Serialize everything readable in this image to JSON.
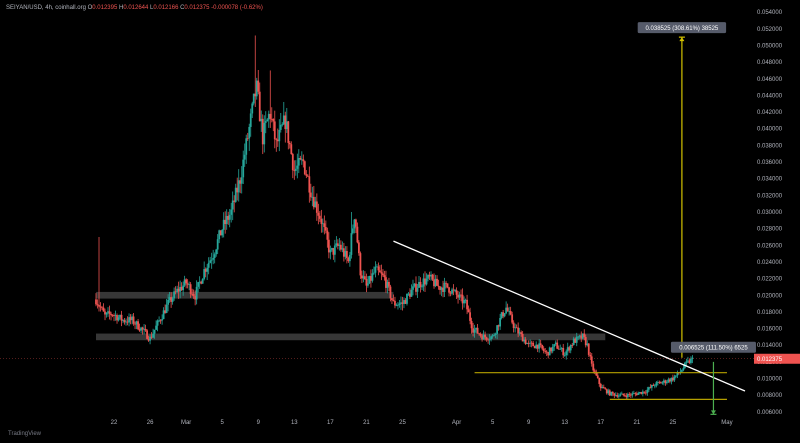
{
  "header": {
    "symbol": "SEIYAN/USD, 4h, coinhall.org",
    "o_label": "O",
    "o_value": "0.012395",
    "h_label": "H",
    "h_value": "0.012644",
    "l_label": "L",
    "l_value": "0.012166",
    "c_label": "C",
    "c_value": "0.012375",
    "change": "-0.000078 (-0.62%)"
  },
  "branding": {
    "label": "TradingView"
  },
  "colors": {
    "up": "#26a69a",
    "down": "#ef5350",
    "trendline": "#ffffff",
    "level_line": "#b5a000",
    "target_arrow": "#d4c200",
    "stop_arrow": "#4caf50",
    "zone": "#4a4a4a"
  },
  "chart_data": {
    "type": "candlestick",
    "timeframe": "4h",
    "ylim": [
      0.0055,
      0.0545
    ],
    "y_ticks": [
      "0.054000",
      "0.052000",
      "0.050000",
      "0.048000",
      "0.046000",
      "0.044000",
      "0.042000",
      "0.040000",
      "0.038000",
      "0.036000",
      "0.034000",
      "0.032000",
      "0.030000",
      "0.028000",
      "0.026000",
      "0.024000",
      "0.022000",
      "0.020000",
      "0.018000",
      "0.016000",
      "0.014000",
      "0.012000",
      "0.010000",
      "0.008000",
      "0.006000"
    ],
    "x_ticks": [
      "22",
      "26",
      "Mar",
      "5",
      "9",
      "13",
      "17",
      "21",
      "25",
      "Apr",
      "5",
      "9",
      "13",
      "17",
      "21",
      "25",
      "May"
    ],
    "x_range_days": [
      0,
      72
    ],
    "x_tick_days": [
      2,
      6,
      10,
      14,
      18,
      22,
      26,
      30,
      34,
      40,
      44,
      48,
      52,
      56,
      60,
      64,
      70
    ],
    "last_price": "0.012375",
    "price_anchors": [
      [
        0.0,
        0.0195
      ],
      [
        0.5,
        0.0185
      ],
      [
        1.0,
        0.0175
      ],
      [
        1.8,
        0.0178
      ],
      [
        3.0,
        0.017
      ],
      [
        4.0,
        0.017
      ],
      [
        5.0,
        0.016
      ],
      [
        6.0,
        0.0148
      ],
      [
        6.8,
        0.0165
      ],
      [
        8.0,
        0.019
      ],
      [
        9.0,
        0.0205
      ],
      [
        10.0,
        0.0215
      ],
      [
        11.0,
        0.02
      ],
      [
        12.0,
        0.023
      ],
      [
        13.0,
        0.025
      ],
      [
        14.0,
        0.028
      ],
      [
        15.0,
        0.03
      ],
      [
        16.0,
        0.034
      ],
      [
        17.0,
        0.04
      ],
      [
        17.8,
        0.045
      ],
      [
        18.5,
        0.039
      ],
      [
        19.3,
        0.042
      ],
      [
        20.0,
        0.038
      ],
      [
        21.0,
        0.041
      ],
      [
        22.0,
        0.035
      ],
      [
        23.0,
        0.036
      ],
      [
        24.0,
        0.032
      ],
      [
        25.0,
        0.029
      ],
      [
        26.0,
        0.025
      ],
      [
        27.0,
        0.026
      ],
      [
        28.0,
        0.024
      ],
      [
        28.7,
        0.03
      ],
      [
        29.3,
        0.023
      ],
      [
        30.0,
        0.021
      ],
      [
        31.0,
        0.023
      ],
      [
        32.0,
        0.022
      ],
      [
        33.0,
        0.019
      ],
      [
        34.0,
        0.019
      ],
      [
        35.0,
        0.0205
      ],
      [
        36.0,
        0.0215
      ],
      [
        37.0,
        0.022
      ],
      [
        38.0,
        0.021
      ],
      [
        39.0,
        0.021
      ],
      [
        40.0,
        0.02
      ],
      [
        41.0,
        0.019
      ],
      [
        41.8,
        0.016
      ],
      [
        43.0,
        0.015
      ],
      [
        44.0,
        0.015
      ],
      [
        45.0,
        0.0175
      ],
      [
        45.5,
        0.0185
      ],
      [
        46.5,
        0.016
      ],
      [
        48.0,
        0.014
      ],
      [
        49.0,
        0.014
      ],
      [
        50.0,
        0.013
      ],
      [
        51.0,
        0.014
      ],
      [
        52.0,
        0.013
      ],
      [
        53.0,
        0.0145
      ],
      [
        54.0,
        0.015
      ],
      [
        54.5,
        0.014
      ],
      [
        55.0,
        0.0115
      ],
      [
        56.0,
        0.009
      ],
      [
        57.0,
        0.0082
      ],
      [
        58.0,
        0.008
      ],
      [
        59.0,
        0.008
      ],
      [
        60.0,
        0.0082
      ],
      [
        61.0,
        0.0085
      ],
      [
        62.0,
        0.0093
      ],
      [
        63.0,
        0.0096
      ],
      [
        64.0,
        0.01
      ],
      [
        64.8,
        0.0108
      ],
      [
        65.5,
        0.0118
      ],
      [
        66.3,
        0.0124
      ]
    ],
    "trendline": {
      "from": [
        33.0,
        0.0265
      ],
      "to": [
        72.0,
        0.0085
      ]
    },
    "zones": [
      {
        "x0": 0.0,
        "x1": 33.0,
        "y0": 0.0196,
        "y1": 0.0204
      },
      {
        "x0": 0.0,
        "x1": 56.5,
        "y0": 0.0146,
        "y1": 0.0154
      }
    ],
    "levels": [
      {
        "x0": 42.0,
        "x1": 70.0,
        "y": 0.0107
      },
      {
        "x0": 57.0,
        "x1": 70.0,
        "y": 0.0075
      }
    ],
    "measures": [
      {
        "label": "0.038525 (308.61%) 38525",
        "x": 65.0,
        "from": 0.0125,
        "to": 0.051
      },
      {
        "label": "0.006525 (111.50%) 6525",
        "x": 68.5,
        "from": 0.012,
        "to": 0.0057
      }
    ]
  }
}
